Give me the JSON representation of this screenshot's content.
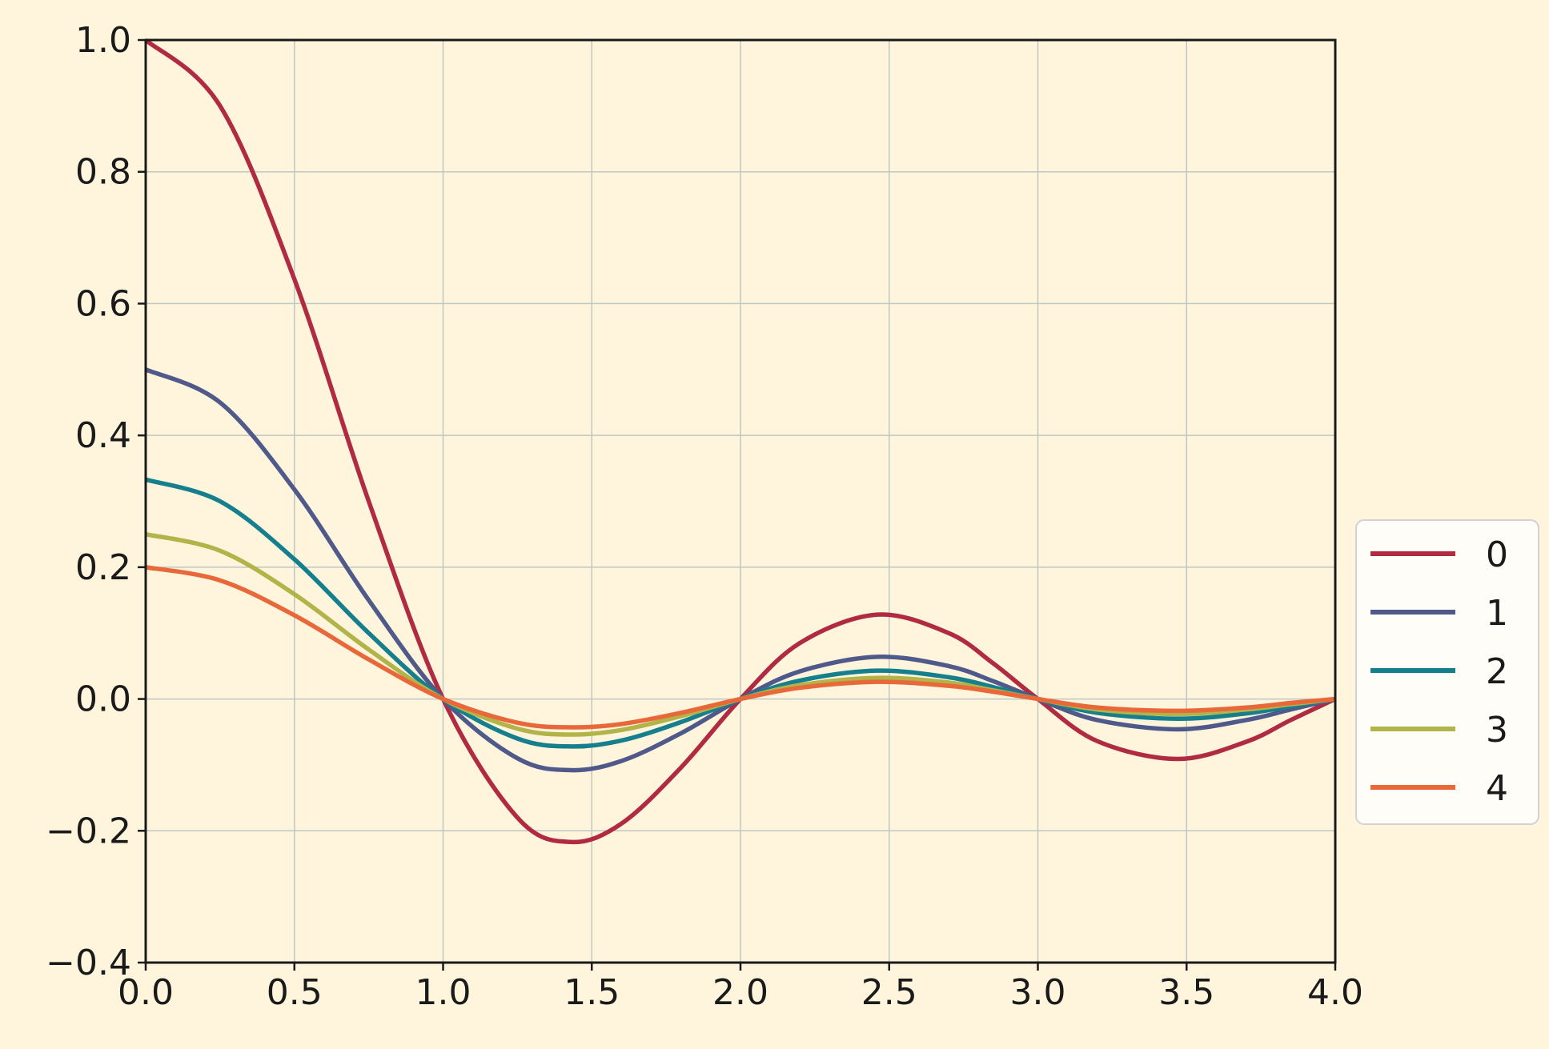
{
  "chart_data": {
    "type": "line",
    "title": "",
    "xlabel": "",
    "ylabel": "",
    "xlim": [
      0.0,
      4.0
    ],
    "ylim": [
      -0.4,
      1.0
    ],
    "xticks": [
      "0.0",
      "0.5",
      "1.0",
      "1.5",
      "2.0",
      "2.5",
      "3.0",
      "3.5",
      "4.0"
    ],
    "yticks": [
      "−0.4",
      "−0.2",
      "0.0",
      "0.2",
      "0.4",
      "0.6",
      "0.8",
      "1.0"
    ],
    "grid": true,
    "legend": {
      "position": "right-center",
      "entries": [
        "0",
        "1",
        "2",
        "3",
        "4"
      ]
    },
    "colors": {
      "background": "#FEF5DC",
      "grid": "#BFC7C2",
      "axes": "#1a1a1a",
      "legend_face": "#FFFDF7"
    },
    "series": [
      {
        "name": "0",
        "color": "#B02A41",
        "x": [
          0.0,
          0.25,
          0.5,
          0.75,
          1.0,
          1.25,
          1.43,
          1.6,
          1.8,
          2.0,
          2.2,
          2.46,
          2.7,
          2.85,
          3.0,
          3.2,
          3.47,
          3.7,
          3.85,
          4.0
        ],
        "y": [
          1.0,
          0.9,
          0.637,
          0.3,
          0.0,
          -0.18,
          -0.217,
          -0.189,
          -0.104,
          0.0,
          0.085,
          0.128,
          0.1,
          0.054,
          0.0,
          -0.064,
          -0.091,
          -0.065,
          -0.032,
          0.0
        ]
      },
      {
        "name": "1",
        "color": "#4F5A8A",
        "x": [
          0.0,
          0.25,
          0.5,
          0.75,
          1.0,
          1.25,
          1.43,
          1.6,
          1.8,
          2.0,
          2.2,
          2.46,
          2.7,
          2.85,
          3.0,
          3.2,
          3.47,
          3.7,
          3.85,
          4.0
        ],
        "y": [
          0.5,
          0.45,
          0.318,
          0.15,
          0.0,
          -0.09,
          -0.108,
          -0.094,
          -0.052,
          0.0,
          0.042,
          0.064,
          0.05,
          0.027,
          0.0,
          -0.032,
          -0.046,
          -0.032,
          -0.016,
          0.0
        ]
      },
      {
        "name": "2",
        "color": "#167F8E",
        "x": [
          0.0,
          0.25,
          0.5,
          0.75,
          1.0,
          1.25,
          1.43,
          1.6,
          1.8,
          2.0,
          2.2,
          2.46,
          2.7,
          2.85,
          3.0,
          3.2,
          3.47,
          3.7,
          3.85,
          4.0
        ],
        "y": [
          0.333,
          0.3,
          0.212,
          0.1,
          0.0,
          -0.06,
          -0.072,
          -0.063,
          -0.035,
          0.0,
          0.028,
          0.043,
          0.033,
          0.018,
          0.0,
          -0.021,
          -0.03,
          -0.022,
          -0.011,
          0.0
        ]
      },
      {
        "name": "3",
        "color": "#B2B348",
        "x": [
          0.0,
          0.25,
          0.5,
          0.75,
          1.0,
          1.25,
          1.43,
          1.6,
          1.8,
          2.0,
          2.2,
          2.46,
          2.7,
          2.85,
          3.0,
          3.2,
          3.47,
          3.7,
          3.85,
          4.0
        ],
        "y": [
          0.25,
          0.225,
          0.159,
          0.075,
          0.0,
          -0.045,
          -0.054,
          -0.047,
          -0.026,
          0.0,
          0.021,
          0.032,
          0.025,
          0.013,
          0.0,
          -0.016,
          -0.023,
          -0.016,
          -0.008,
          0.0
        ]
      },
      {
        "name": "4",
        "color": "#E8683A",
        "x": [
          0.0,
          0.25,
          0.5,
          0.75,
          1.0,
          1.25,
          1.43,
          1.6,
          1.8,
          2.0,
          2.2,
          2.46,
          2.7,
          2.85,
          3.0,
          3.2,
          3.47,
          3.7,
          3.85,
          4.0
        ],
        "y": [
          0.2,
          0.18,
          0.127,
          0.06,
          0.0,
          -0.036,
          -0.043,
          -0.038,
          -0.021,
          0.0,
          0.017,
          0.026,
          0.02,
          0.011,
          0.0,
          -0.013,
          -0.018,
          -0.013,
          -0.006,
          0.0
        ]
      }
    ]
  }
}
